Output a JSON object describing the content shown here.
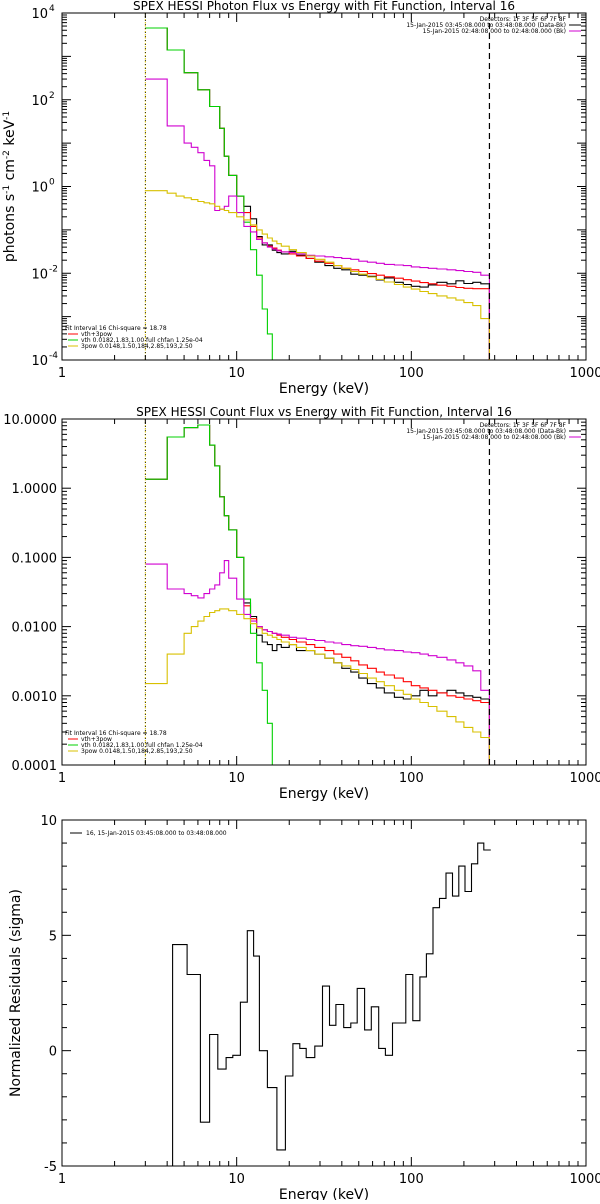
{
  "colors": {
    "black": "#000000",
    "red": "#ff0000",
    "green": "#00d000",
    "magenta": "#d000d0",
    "yellow": "#d8c000",
    "orange": "#ff8c00"
  },
  "chart_data": [
    {
      "type": "line",
      "title": "SPEX HESSI Photon Flux vs Energy with Fit Function, Interval 16",
      "xlabel": "Energy (keV)",
      "ylabel": "photons s",
      "ylabel_sup1": "-1",
      "ylabel_mid": " cm",
      "ylabel_sup2": "-2",
      "ylabel_end": " keV",
      "ylabel_sup3": "-1",
      "xscale": "log",
      "yscale": "log",
      "xlim": [
        1,
        1000
      ],
      "ylim": [
        0.0001,
        10000
      ],
      "x_ticks": [
        {
          "v": 1,
          "label": "1"
        },
        {
          "v": 10,
          "label": "10"
        },
        {
          "v": 100,
          "label": "100"
        },
        {
          "v": 1000,
          "label": "1000"
        }
      ],
      "y_ticks": [
        {
          "v": 10000,
          "base": "10",
          "exp": "4"
        },
        {
          "v": 100,
          "base": "10",
          "exp": "2"
        },
        {
          "v": 1,
          "base": "10",
          "exp": "0"
        },
        {
          "v": 0.01,
          "base": "10",
          "exp": "-2"
        },
        {
          "v": 0.0001,
          "base": "10",
          "exp": "-4"
        }
      ],
      "vlines": [
        {
          "x": 3,
          "style": "dotted"
        },
        {
          "x": 280,
          "style": "dashed"
        }
      ],
      "legend_top": [
        {
          "text": "Detectors: 1F 3F 5F 6F 7F 8F",
          "color": null
        },
        {
          "text": "15-Jan-2015 03:45:08.000 to 03:48:08.000 (Data-Bk)",
          "color": "#000000"
        },
        {
          "text": "15-Jan-2015 02:48:08.000 to 02:48:08.000 (Bk)",
          "color": "#d000d0"
        }
      ],
      "legend_bottom": [
        {
          "text": "Fit Interval 16    Chi-square = 18.78",
          "color": null
        },
        {
          "text": "vth+3pow",
          "color": "#ff0000"
        },
        {
          "text": "vth 0.0182,1.83,1.00  full chfan 1.25e-04",
          "color": "#00d000"
        },
        {
          "text": "3pow 0.0148,1.50,184,2.85,193,2.50",
          "color": "#d8c000"
        }
      ],
      "edges": [
        3,
        3.5,
        4,
        4.5,
        5,
        5.5,
        6,
        6.5,
        7,
        7.5,
        8,
        8.5,
        9,
        10,
        11,
        12,
        13,
        14,
        15,
        16,
        17,
        18,
        20,
        22,
        25,
        28,
        32,
        36,
        40,
        45,
        50,
        56,
        63,
        70,
        80,
        90,
        100,
        112,
        125,
        140,
        160,
        180,
        200,
        225,
        250,
        280
      ],
      "series": [
        {
          "color": "#000000",
          "values": [
            4500,
            4500,
            1400,
            1400,
            420,
            420,
            170,
            170,
            70,
            70,
            22,
            5,
            1.8,
            0.6,
            0.35,
            0.18,
            0.07,
            0.045,
            0.045,
            0.034,
            0.03,
            0.028,
            0.032,
            0.026,
            0.022,
            0.018,
            0.015,
            0.013,
            0.012,
            0.0095,
            0.009,
            0.0085,
            0.007,
            0.0078,
            0.0062,
            0.0055,
            0.005,
            0.0048,
            0.0054,
            0.0062,
            0.0057,
            0.0067,
            0.0058,
            0.0062,
            0.0057
          ]
        },
        {
          "color": "#ff0000",
          "values": [
            4500,
            4500,
            1400,
            1400,
            420,
            420,
            170,
            170,
            70,
            70,
            22,
            5,
            1.8,
            0.6,
            0.25,
            0.12,
            0.065,
            0.05,
            0.042,
            0.038,
            0.034,
            0.031,
            0.028,
            0.025,
            0.022,
            0.019,
            0.017,
            0.015,
            0.013,
            0.012,
            0.011,
            0.0098,
            0.009,
            0.0083,
            0.0077,
            0.0071,
            0.0066,
            0.0061,
            0.0057,
            0.0053,
            0.005,
            0.0047,
            0.0045,
            0.0044,
            0.0044
          ]
        },
        {
          "color": "#00d000",
          "values": [
            4500,
            4500,
            1400,
            1400,
            420,
            420,
            170,
            170,
            70,
            70,
            22,
            5,
            1.8,
            0.6,
            0.15,
            0.035,
            0.009,
            0.0015,
            0.0004,
            0.0001
          ]
        },
        {
          "color": "#d000d0",
          "values": [
            300,
            300,
            25,
            25,
            10,
            8,
            6,
            4,
            3,
            0.28,
            0.3,
            0.35,
            0.6,
            0.25,
            0.12,
            0.09,
            0.06,
            0.05,
            0.04,
            0.036,
            0.033,
            0.031,
            0.03,
            0.028,
            0.026,
            0.025,
            0.024,
            0.023,
            0.022,
            0.021,
            0.019,
            0.018,
            0.017,
            0.016,
            0.0155,
            0.015,
            0.014,
            0.0135,
            0.013,
            0.0125,
            0.012,
            0.0115,
            0.011,
            0.0105,
            0.009
          ]
        },
        {
          "color": "#d8c000",
          "values": [
            0.8,
            0.8,
            0.7,
            0.6,
            0.55,
            0.5,
            0.45,
            0.42,
            0.4,
            0.35,
            0.3,
            0.28,
            0.25,
            0.2,
            0.17,
            0.13,
            0.1,
            0.08,
            0.065,
            0.055,
            0.048,
            0.042,
            0.035,
            0.03,
            0.025,
            0.021,
            0.018,
            0.015,
            0.013,
            0.011,
            0.0095,
            0.0082,
            0.0072,
            0.0063,
            0.0055,
            0.0048,
            0.0043,
            0.0038,
            0.0034,
            0.003,
            0.0027,
            0.0024,
            0.0021,
            0.0018,
            0.0009
          ]
        }
      ]
    },
    {
      "type": "line",
      "title": "SPEX HESSI Count Flux vs Energy with Fit Function, Interval 16",
      "xlabel": "Energy (keV)",
      "xscale": "log",
      "yscale": "log",
      "xlim": [
        1,
        1000
      ],
      "ylim": [
        0.0001,
        10
      ],
      "x_ticks": [
        {
          "v": 1,
          "label": "1"
        },
        {
          "v": 10,
          "label": "10"
        },
        {
          "v": 100,
          "label": "100"
        },
        {
          "v": 1000,
          "label": "1000"
        }
      ],
      "y_ticks": [
        {
          "v": 10,
          "label": "10.0000"
        },
        {
          "v": 1,
          "label": "1.0000"
        },
        {
          "v": 0.1,
          "label": "0.1000"
        },
        {
          "v": 0.01,
          "label": "0.0100"
        },
        {
          "v": 0.001,
          "label": "0.0010"
        },
        {
          "v": 0.0001,
          "label": "0.0001"
        }
      ],
      "vlines": [
        {
          "x": 3,
          "style": "dotted"
        },
        {
          "x": 280,
          "style": "dashed"
        }
      ],
      "legend_top": [
        {
          "text": "Detectors: 1F 3F 5F 6F 7F 8F",
          "color": null
        },
        {
          "text": "15-Jan-2015 03:45:08.000 to 03:48:08.000 (Data-Bk)",
          "color": "#000000"
        },
        {
          "text": "15-Jan-2015 02:48:08.000 to 02:48:08.000 (Bk)",
          "color": "#d000d0"
        }
      ],
      "legend_bottom": [
        {
          "text": "Fit Interval 16    Chi-square = 18.78",
          "color": null
        },
        {
          "text": "vth+3pow",
          "color": "#ff0000"
        },
        {
          "text": "vth 0.0182,1.83,1.00  full chfan 1.25e-04",
          "color": "#00d000"
        },
        {
          "text": "3pow 0.0148,1.50,184,2.85,193,2.50",
          "color": "#d8c000"
        }
      ],
      "edges": [
        3,
        3.5,
        4,
        4.5,
        5,
        5.5,
        6,
        6.5,
        7,
        7.5,
        8,
        8.5,
        9,
        10,
        11,
        12,
        13,
        14,
        15,
        16,
        17,
        18,
        20,
        22,
        25,
        28,
        32,
        36,
        40,
        45,
        50,
        56,
        63,
        70,
        80,
        90,
        100,
        112,
        125,
        140,
        160,
        180,
        200,
        225,
        250,
        280
      ],
      "series": [
        {
          "color": "#000000",
          "values": [
            1.35,
            1.35,
            5.5,
            5.5,
            7.5,
            7.5,
            8.2,
            8.2,
            4.2,
            2.1,
            0.75,
            0.4,
            0.25,
            0.1,
            0.022,
            0.014,
            0.0075,
            0.006,
            0.0055,
            0.0045,
            0.0055,
            0.005,
            0.0055,
            0.0045,
            0.0045,
            0.004,
            0.0035,
            0.003,
            0.0025,
            0.0022,
            0.0018,
            0.0015,
            0.0013,
            0.0011,
            0.00095,
            0.0009,
            0.001,
            0.0012,
            0.001,
            0.0011,
            0.0012,
            0.0011,
            0.001,
            0.00095,
            0.0009
          ]
        },
        {
          "color": "#ff0000",
          "values": [
            1.35,
            1.35,
            5.5,
            5.5,
            7.5,
            7.5,
            8.2,
            8.2,
            4.2,
            2.1,
            0.75,
            0.4,
            0.25,
            0.1,
            0.02,
            0.013,
            0.01,
            0.009,
            0.0085,
            0.008,
            0.0075,
            0.007,
            0.0065,
            0.006,
            0.0055,
            0.005,
            0.0045,
            0.004,
            0.0036,
            0.0032,
            0.0028,
            0.0025,
            0.0022,
            0.002,
            0.0018,
            0.0016,
            0.0014,
            0.0013,
            0.0012,
            0.0011,
            0.001,
            0.00095,
            0.0009,
            0.00085,
            0.0008
          ]
        },
        {
          "color": "#00d000",
          "values": [
            1.35,
            1.35,
            5.5,
            5.5,
            7.5,
            7.5,
            8.2,
            8.2,
            4.2,
            2.1,
            0.75,
            0.4,
            0.25,
            0.1,
            0.025,
            0.008,
            0.003,
            0.0012,
            0.0004,
            0.0001
          ]
        },
        {
          "color": "#d000d0",
          "values": [
            0.08,
            0.08,
            0.035,
            0.035,
            0.03,
            0.028,
            0.026,
            0.03,
            0.035,
            0.04,
            0.06,
            0.09,
            0.05,
            0.025,
            0.015,
            0.012,
            0.01,
            0.009,
            0.0085,
            0.008,
            0.0078,
            0.0075,
            0.007,
            0.0068,
            0.0065,
            0.0063,
            0.006,
            0.0058,
            0.0055,
            0.0053,
            0.0052,
            0.005,
            0.0048,
            0.0046,
            0.0045,
            0.0043,
            0.0042,
            0.004,
            0.0038,
            0.0036,
            0.0033,
            0.003,
            0.0027,
            0.0023,
            0.0012
          ]
        },
        {
          "color": "#d8c000",
          "values": [
            0.0015,
            0.0015,
            0.004,
            0.004,
            0.008,
            0.01,
            0.012,
            0.014,
            0.016,
            0.017,
            0.018,
            0.018,
            0.017,
            0.015,
            0.013,
            0.011,
            0.0095,
            0.008,
            0.0075,
            0.007,
            0.0065,
            0.006,
            0.0055,
            0.005,
            0.0045,
            0.004,
            0.0035,
            0.003,
            0.0027,
            0.0024,
            0.0021,
            0.0018,
            0.0016,
            0.0014,
            0.0012,
            0.00105,
            0.0009,
            0.0008,
            0.0007,
            0.0006,
            0.0005,
            0.00042,
            0.00035,
            0.0003,
            0.00025
          ]
        }
      ]
    },
    {
      "type": "line",
      "xlabel": "Energy (keV)",
      "ylabel": "Normalized Residuals (sigma)",
      "xscale": "log",
      "yscale": "linear",
      "xlim": [
        1,
        1000
      ],
      "ylim": [
        -5,
        10
      ],
      "x_ticks": [
        {
          "v": 1,
          "label": "1"
        },
        {
          "v": 10,
          "label": "10"
        },
        {
          "v": 100,
          "label": "100"
        },
        {
          "v": 1000,
          "label": "1000"
        }
      ],
      "y_ticks": [
        {
          "v": 10,
          "label": "10"
        },
        {
          "v": 5,
          "label": "5"
        },
        {
          "v": 0,
          "label": "0"
        },
        {
          "v": -5,
          "label": "-5"
        }
      ],
      "legend_top": [
        {
          "text": "16, 15-Jan-2015 03:45:08.000 to 03:48:08.000",
          "color": "#000000"
        }
      ],
      "edges": [
        4.3,
        5.2,
        6.2,
        7.0,
        7.8,
        8.7,
        9.5,
        10.5,
        11.5,
        12.5,
        13.5,
        15,
        17,
        19,
        21,
        23,
        25,
        28,
        31,
        34,
        37,
        41,
        45,
        49,
        54,
        59,
        65,
        71,
        78,
        85,
        93,
        102,
        112,
        122,
        133,
        145,
        158,
        172,
        187,
        203,
        221,
        240,
        260,
        285
      ],
      "series": [
        {
          "color": "#000000",
          "values": [
            4.6,
            3.3,
            -3.1,
            0.7,
            -0.8,
            -0.3,
            -0.2,
            2.1,
            5.2,
            4.1,
            0,
            -1.6,
            -4.3,
            -1.1,
            0.3,
            0.1,
            -0.3,
            0.2,
            2.8,
            1.1,
            2.0,
            1.0,
            1.2,
            2.7,
            0.9,
            1.9,
            0.1,
            -0.2,
            1.2,
            1.2,
            3.3,
            1.3,
            3.2,
            4.2,
            6.2,
            6.6,
            7.7,
            6.7,
            8.0,
            6.9,
            8.1,
            9.0,
            8.7,
            8.7
          ]
        }
      ]
    }
  ]
}
